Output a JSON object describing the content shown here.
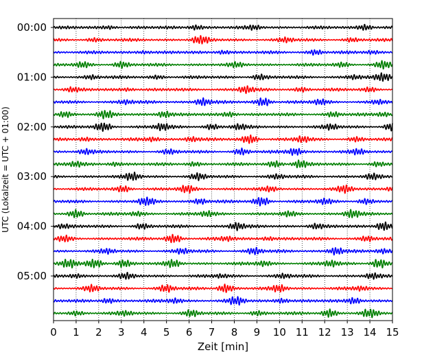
{
  "chart_data": {
    "type": "line",
    "title": "",
    "xlabel": "Zeit  [min]",
    "ylabel": "UTC (Lokalzeit = UTC + 01:00)",
    "xlim": [
      0,
      15
    ],
    "x_ticks": [
      0,
      1,
      2,
      3,
      4,
      5,
      6,
      7,
      8,
      9,
      10,
      11,
      12,
      13,
      14,
      15
    ],
    "y_tick_labels": [
      "00:00",
      "01:00",
      "02:00",
      "03:00",
      "04:00",
      "05:00"
    ],
    "grid": "vertical dotted at each minute",
    "legend": "none",
    "trace_interval_minutes": 15,
    "trace_count": 24,
    "trace_colors": [
      "#000000",
      "#ff0000",
      "#0000ff",
      "#007f00"
    ],
    "series": [
      {
        "start": "00:00",
        "bursts": [
          [
            2.5,
            0.3
          ],
          [
            6.3,
            0.5
          ],
          [
            8.9,
            0.4
          ],
          [
            13.8,
            0.6
          ]
        ]
      },
      {
        "start": "00:15",
        "bursts": [
          [
            1.8,
            0.3
          ],
          [
            6.5,
            1.0
          ],
          [
            10.3,
            0.4
          ],
          [
            13.2,
            0.3
          ]
        ]
      },
      {
        "start": "00:30",
        "bursts": [
          [
            4.0,
            0.3
          ],
          [
            7.5,
            0.4
          ],
          [
            11.6,
            0.5
          ],
          [
            14.1,
            0.3
          ]
        ]
      },
      {
        "start": "00:45",
        "bursts": [
          [
            1.3,
            0.5
          ],
          [
            3.0,
            0.6
          ],
          [
            8.1,
            0.4
          ],
          [
            12.8,
            0.4
          ],
          [
            14.6,
            0.8
          ]
        ]
      },
      {
        "start": "01:00",
        "bursts": [
          [
            1.7,
            0.4
          ],
          [
            4.6,
            0.3
          ],
          [
            9.1,
            0.5
          ],
          [
            13.3,
            0.4
          ],
          [
            14.6,
            0.9
          ]
        ]
      },
      {
        "start": "01:15",
        "bursts": [
          [
            0.8,
            0.4
          ],
          [
            3.3,
            0.3
          ],
          [
            8.5,
            0.7
          ],
          [
            11.0,
            0.4
          ],
          [
            14.0,
            0.4
          ]
        ]
      },
      {
        "start": "01:30",
        "bursts": [
          [
            3.2,
            0.4
          ],
          [
            6.6,
            0.8
          ],
          [
            9.3,
            0.9
          ],
          [
            11.8,
            0.5
          ],
          [
            14.4,
            0.4
          ]
        ]
      },
      {
        "start": "01:45",
        "bursts": [
          [
            0.5,
            0.6
          ],
          [
            2.3,
            0.8
          ],
          [
            4.9,
            0.7
          ],
          [
            7.8,
            0.5
          ],
          [
            12.4,
            0.5
          ],
          [
            14.6,
            0.4
          ]
        ]
      },
      {
        "start": "02:00",
        "bursts": [
          [
            2.2,
            1.0
          ],
          [
            4.8,
            0.7
          ],
          [
            7.0,
            0.5
          ],
          [
            8.2,
            0.5
          ],
          [
            12.3,
            0.5
          ],
          [
            15.0,
            0.9
          ]
        ]
      },
      {
        "start": "02:15",
        "bursts": [
          [
            1.4,
            0.4
          ],
          [
            4.4,
            0.4
          ],
          [
            6.1,
            0.5
          ],
          [
            8.7,
            1.0
          ],
          [
            11.0,
            0.6
          ],
          [
            13.4,
            0.4
          ]
        ]
      },
      {
        "start": "02:30",
        "bursts": [
          [
            1.4,
            0.5
          ],
          [
            5.1,
            0.4
          ],
          [
            8.3,
            0.6
          ],
          [
            10.7,
            0.8
          ],
          [
            13.5,
            0.5
          ]
        ]
      },
      {
        "start": "02:45",
        "bursts": [
          [
            1.0,
            0.5
          ],
          [
            2.7,
            0.4
          ],
          [
            6.2,
            0.4
          ],
          [
            9.8,
            0.6
          ],
          [
            10.9,
            0.8
          ],
          [
            14.3,
            0.4
          ]
        ]
      },
      {
        "start": "03:00",
        "bursts": [
          [
            3.5,
            0.8
          ],
          [
            6.4,
            0.6
          ],
          [
            9.9,
            0.4
          ],
          [
            14.1,
            0.5
          ]
        ]
      },
      {
        "start": "03:15",
        "bursts": [
          [
            3.1,
            0.6
          ],
          [
            5.9,
            0.7
          ],
          [
            9.6,
            0.4
          ],
          [
            12.9,
            0.7
          ],
          [
            15.0,
            0.5
          ]
        ]
      },
      {
        "start": "03:30",
        "bursts": [
          [
            4.1,
            0.9
          ],
          [
            6.5,
            0.6
          ],
          [
            9.2,
            1.0
          ],
          [
            12.0,
            0.5
          ],
          [
            13.8,
            0.5
          ]
        ]
      },
      {
        "start": "03:45",
        "bursts": [
          [
            1.0,
            0.8
          ],
          [
            3.7,
            0.4
          ],
          [
            6.8,
            0.5
          ],
          [
            10.4,
            0.4
          ],
          [
            13.2,
            0.9
          ]
        ]
      },
      {
        "start": "04:00",
        "bursts": [
          [
            0.4,
            0.4
          ],
          [
            3.9,
            0.5
          ],
          [
            8.1,
            0.8
          ],
          [
            11.6,
            0.5
          ],
          [
            14.6,
            1.0
          ]
        ]
      },
      {
        "start": "04:15",
        "bursts": [
          [
            0.5,
            0.5
          ],
          [
            5.3,
            1.0
          ],
          [
            7.7,
            0.4
          ],
          [
            9.5,
            0.4
          ],
          [
            13.9,
            0.5
          ]
        ]
      },
      {
        "start": "04:30",
        "bursts": [
          [
            2.4,
            0.4
          ],
          [
            5.7,
            0.5
          ],
          [
            8.9,
            0.7
          ],
          [
            12.5,
            0.8
          ],
          [
            14.6,
            0.4
          ]
        ]
      },
      {
        "start": "04:45",
        "bursts": [
          [
            0.7,
            1.0
          ],
          [
            1.8,
            0.9
          ],
          [
            3.1,
            0.8
          ],
          [
            5.3,
            0.7
          ],
          [
            9.3,
            0.5
          ],
          [
            12.3,
            0.6
          ],
          [
            14.4,
            1.0
          ]
        ]
      },
      {
        "start": "05:00",
        "bursts": [
          [
            1.0,
            0.4
          ],
          [
            3.2,
            0.5
          ],
          [
            7.4,
            0.3
          ],
          [
            10.2,
            0.4
          ],
          [
            14.1,
            0.5
          ]
        ]
      },
      {
        "start": "05:15",
        "bursts": [
          [
            1.7,
            0.6
          ],
          [
            5.0,
            0.7
          ],
          [
            7.6,
            0.9
          ],
          [
            10.0,
            0.7
          ],
          [
            13.6,
            0.4
          ]
        ]
      },
      {
        "start": "05:30",
        "bursts": [
          [
            2.4,
            0.5
          ],
          [
            5.4,
            0.5
          ],
          [
            8.1,
            0.9
          ],
          [
            10.1,
            0.5
          ],
          [
            13.3,
            0.7
          ]
        ]
      },
      {
        "start": "05:45",
        "bursts": [
          [
            1.0,
            0.4
          ],
          [
            3.2,
            0.4
          ],
          [
            6.1,
            0.6
          ],
          [
            9.0,
            0.4
          ],
          [
            12.2,
            0.8
          ],
          [
            14.0,
            0.9
          ]
        ]
      }
    ]
  }
}
